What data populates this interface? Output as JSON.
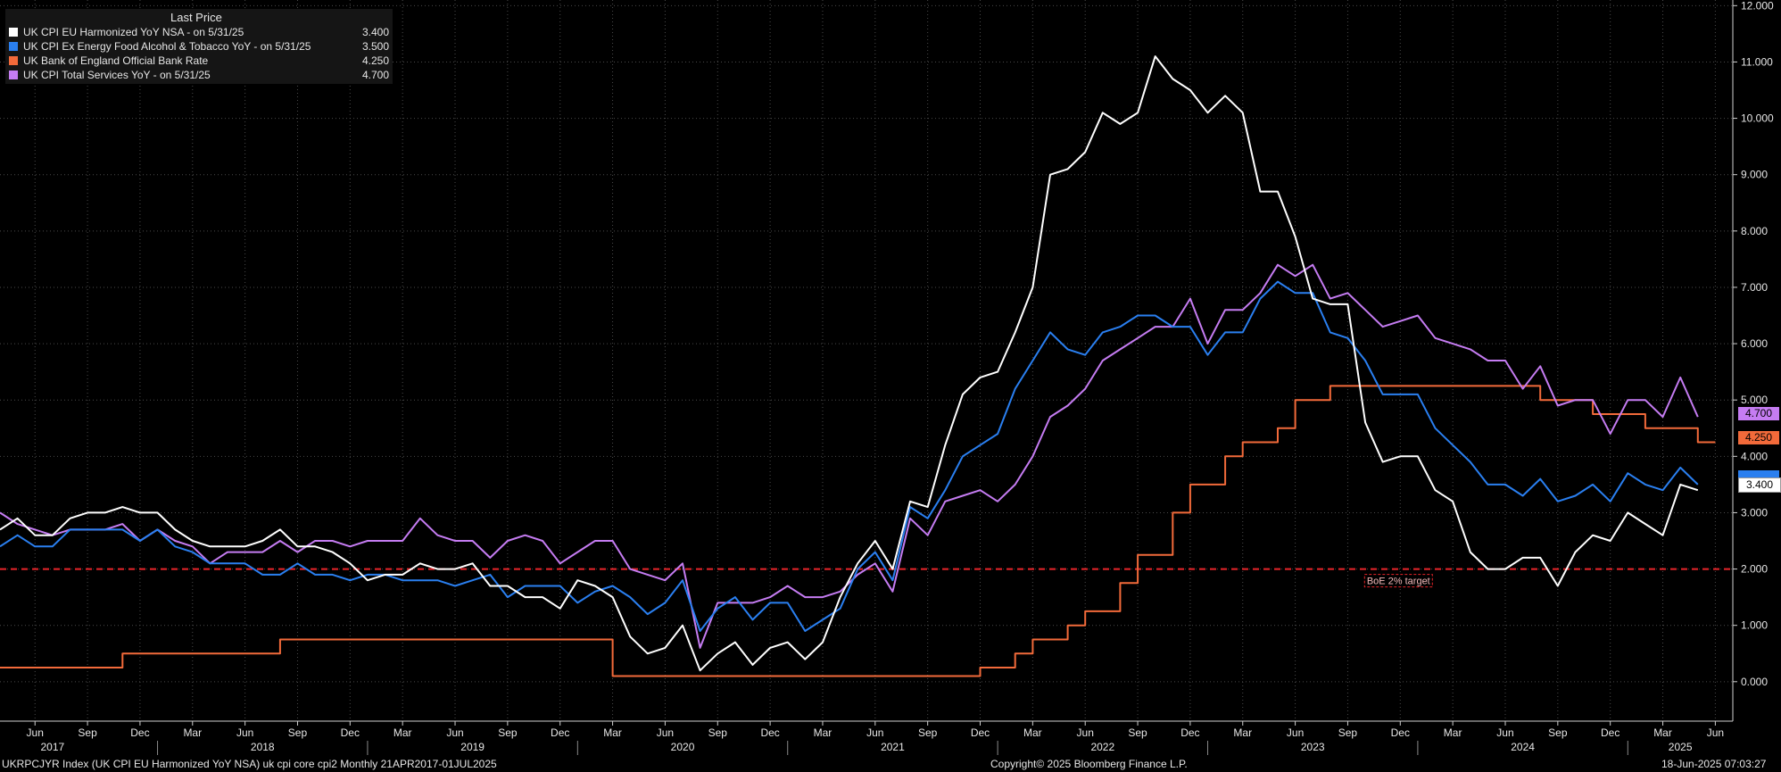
{
  "legend": {
    "header": "Last Price",
    "items": [
      {
        "label": "UK CPI EU Harmonized YoY NSA -  on 5/31/25",
        "value": "3.400",
        "color": "#ffffff"
      },
      {
        "label": "UK CPI Ex Energy Food Alcohol & Tobacco YoY -  on 5/31/25",
        "value": "3.500",
        "color": "#2a7ff0"
      },
      {
        "label": "UK Bank of England Official Bank Rate",
        "value": "4.250",
        "color": "#f26a3a"
      },
      {
        "label": "UK CPI Total Services YoY -  on 5/31/25",
        "value": "4.700",
        "color": "#c57cf2"
      }
    ]
  },
  "footer": {
    "left": "UKRPCJYR Index (UK CPI EU Harmonized YoY NSA) uk cpi core cpi2  Monthly 21APR2017-01JUL2025",
    "center": "Copyright© 2025 Bloomberg Finance L.P.",
    "right": "18-Jun-2025 07:03:27"
  },
  "annotation": "BoE 2% target",
  "chart_data": {
    "type": "line",
    "ylim": [
      -0.7,
      12.1
    ],
    "yticks": [
      "12.000",
      "11.000",
      "10.000",
      "9.000",
      "8.000",
      "7.000",
      "6.000",
      "5.000",
      "4.000",
      "3.000",
      "2.000",
      "1.000",
      "0.000"
    ],
    "ytick_values": [
      12,
      11,
      10,
      9,
      8,
      7,
      6,
      5,
      4,
      3,
      2,
      1,
      0
    ],
    "x_start": "2017-04",
    "x_end": "2025-07",
    "month_ticks": [
      {
        "label": "Jun",
        "date": "2017-06"
      },
      {
        "label": "Sep",
        "date": "2017-09"
      },
      {
        "label": "Dec",
        "date": "2017-12"
      },
      {
        "label": "Mar",
        "date": "2018-03"
      },
      {
        "label": "Jun",
        "date": "2018-06"
      },
      {
        "label": "Sep",
        "date": "2018-09"
      },
      {
        "label": "Dec",
        "date": "2018-12"
      },
      {
        "label": "Mar",
        "date": "2019-03"
      },
      {
        "label": "Jun",
        "date": "2019-06"
      },
      {
        "label": "Sep",
        "date": "2019-09"
      },
      {
        "label": "Dec",
        "date": "2019-12"
      },
      {
        "label": "Mar",
        "date": "2020-03"
      },
      {
        "label": "Jun",
        "date": "2020-06"
      },
      {
        "label": "Sep",
        "date": "2020-09"
      },
      {
        "label": "Dec",
        "date": "2020-12"
      },
      {
        "label": "Mar",
        "date": "2021-03"
      },
      {
        "label": "Jun",
        "date": "2021-06"
      },
      {
        "label": "Sep",
        "date": "2021-09"
      },
      {
        "label": "Dec",
        "date": "2021-12"
      },
      {
        "label": "Mar",
        "date": "2022-03"
      },
      {
        "label": "Jun",
        "date": "2022-06"
      },
      {
        "label": "Sep",
        "date": "2022-09"
      },
      {
        "label": "Dec",
        "date": "2022-12"
      },
      {
        "label": "Mar",
        "date": "2023-03"
      },
      {
        "label": "Jun",
        "date": "2023-06"
      },
      {
        "label": "Sep",
        "date": "2023-09"
      },
      {
        "label": "Dec",
        "date": "2023-12"
      },
      {
        "label": "Mar",
        "date": "2024-03"
      },
      {
        "label": "Jun",
        "date": "2024-06"
      },
      {
        "label": "Sep",
        "date": "2024-09"
      },
      {
        "label": "Dec",
        "date": "2024-12"
      },
      {
        "label": "Mar",
        "date": "2025-03"
      },
      {
        "label": "Jun",
        "date": "2025-06"
      }
    ],
    "year_ticks": [
      {
        "label": "2017",
        "date": "2017-07"
      },
      {
        "label": "2018",
        "date": "2018-07"
      },
      {
        "label": "2019",
        "date": "2019-07"
      },
      {
        "label": "2020",
        "date": "2020-07"
      },
      {
        "label": "2021",
        "date": "2021-07"
      },
      {
        "label": "2022",
        "date": "2022-07"
      },
      {
        "label": "2023",
        "date": "2023-07"
      },
      {
        "label": "2024",
        "date": "2024-07"
      },
      {
        "label": "2025",
        "date": "2025-04"
      }
    ],
    "reference_line": {
      "value": 2.0,
      "color": "#e8252a",
      "label": "BoE 2% target",
      "label_date": "2023-12"
    },
    "series_start": "2017-04",
    "series": [
      {
        "name": "UK CPI EU Harmonized YoY NSA",
        "color": "#ffffff",
        "last": "3.400",
        "values": [
          2.7,
          2.9,
          2.6,
          2.6,
          2.9,
          3.0,
          3.0,
          3.1,
          3.0,
          3.0,
          2.7,
          2.5,
          2.4,
          2.4,
          2.4,
          2.5,
          2.7,
          2.4,
          2.4,
          2.3,
          2.1,
          1.8,
          1.9,
          1.9,
          2.1,
          2.0,
          2.0,
          2.1,
          1.7,
          1.7,
          1.5,
          1.5,
          1.3,
          1.8,
          1.7,
          1.5,
          0.8,
          0.5,
          0.6,
          1.0,
          0.2,
          0.5,
          0.7,
          0.3,
          0.6,
          0.7,
          0.4,
          0.7,
          1.5,
          2.1,
          2.5,
          2.0,
          3.2,
          3.1,
          4.2,
          5.1,
          5.4,
          5.5,
          6.2,
          7.0,
          9.0,
          9.1,
          9.4,
          10.1,
          9.9,
          10.1,
          11.1,
          10.7,
          10.5,
          10.1,
          10.4,
          10.1,
          8.7,
          8.7,
          7.9,
          6.8,
          6.7,
          6.7,
          4.6,
          3.9,
          4.0,
          4.0,
          3.4,
          3.2,
          2.3,
          2.0,
          2.0,
          2.2,
          2.2,
          1.7,
          2.3,
          2.6,
          2.5,
          3.0,
          2.8,
          2.6,
          3.5,
          3.4
        ]
      },
      {
        "name": "UK CPI Ex Energy Food Alcohol & Tobacco YoY",
        "color": "#2a7ff0",
        "last": "3.500",
        "values": [
          2.4,
          2.6,
          2.4,
          2.4,
          2.7,
          2.7,
          2.7,
          2.7,
          2.5,
          2.7,
          2.4,
          2.3,
          2.1,
          2.1,
          2.1,
          1.9,
          1.9,
          2.1,
          1.9,
          1.9,
          1.8,
          1.9,
          1.9,
          1.8,
          1.8,
          1.8,
          1.7,
          1.8,
          1.9,
          1.5,
          1.7,
          1.7,
          1.7,
          1.4,
          1.6,
          1.7,
          1.5,
          1.2,
          1.4,
          1.8,
          0.9,
          1.3,
          1.5,
          1.1,
          1.4,
          1.4,
          0.9,
          1.1,
          1.3,
          2.0,
          2.3,
          1.8,
          3.1,
          2.9,
          3.4,
          4.0,
          4.2,
          4.4,
          5.2,
          5.7,
          6.2,
          5.9,
          5.8,
          6.2,
          6.3,
          6.5,
          6.5,
          6.3,
          6.3,
          5.8,
          6.2,
          6.2,
          6.8,
          7.1,
          6.9,
          6.9,
          6.2,
          6.1,
          5.7,
          5.1,
          5.1,
          5.1,
          4.5,
          4.2,
          3.9,
          3.5,
          3.5,
          3.3,
          3.6,
          3.2,
          3.3,
          3.5,
          3.2,
          3.7,
          3.5,
          3.4,
          3.8,
          3.5
        ]
      },
      {
        "name": "UK Bank of England Official Bank Rate",
        "color": "#f26a3a",
        "last": "4.250",
        "values": [
          0.25,
          0.25,
          0.25,
          0.25,
          0.25,
          0.25,
          0.25,
          0.5,
          0.5,
          0.5,
          0.5,
          0.5,
          0.5,
          0.5,
          0.5,
          0.5,
          0.75,
          0.75,
          0.75,
          0.75,
          0.75,
          0.75,
          0.75,
          0.75,
          0.75,
          0.75,
          0.75,
          0.75,
          0.75,
          0.75,
          0.75,
          0.75,
          0.75,
          0.75,
          0.75,
          0.1,
          0.1,
          0.1,
          0.1,
          0.1,
          0.1,
          0.1,
          0.1,
          0.1,
          0.1,
          0.1,
          0.1,
          0.1,
          0.1,
          0.1,
          0.1,
          0.1,
          0.1,
          0.1,
          0.1,
          0.1,
          0.25,
          0.25,
          0.5,
          0.75,
          0.75,
          1.0,
          1.25,
          1.25,
          1.75,
          2.25,
          2.25,
          3.0,
          3.5,
          3.5,
          4.0,
          4.25,
          4.25,
          4.5,
          5.0,
          5.0,
          5.25,
          5.25,
          5.25,
          5.25,
          5.25,
          5.25,
          5.25,
          5.25,
          5.25,
          5.25,
          5.25,
          5.25,
          5.0,
          5.0,
          5.0,
          4.75,
          4.75,
          4.75,
          4.5,
          4.5,
          4.5,
          4.25,
          4.25
        ]
      },
      {
        "name": "UK CPI Total Services YoY",
        "color": "#c57cf2",
        "last": "4.700",
        "values": [
          3.0,
          2.8,
          2.7,
          2.6,
          2.7,
          2.7,
          2.7,
          2.8,
          2.5,
          2.7,
          2.5,
          2.4,
          2.1,
          2.3,
          2.3,
          2.3,
          2.5,
          2.3,
          2.5,
          2.5,
          2.4,
          2.5,
          2.5,
          2.5,
          2.9,
          2.6,
          2.5,
          2.5,
          2.2,
          2.5,
          2.6,
          2.5,
          2.1,
          2.3,
          2.5,
          2.5,
          2.0,
          1.9,
          1.8,
          2.1,
          0.6,
          1.4,
          1.4,
          1.4,
          1.5,
          1.7,
          1.5,
          1.5,
          1.6,
          1.9,
          2.1,
          1.6,
          2.9,
          2.6,
          3.2,
          3.3,
          3.4,
          3.2,
          3.5,
          4.0,
          4.7,
          4.9,
          5.2,
          5.7,
          5.9,
          6.1,
          6.3,
          6.3,
          6.8,
          6.0,
          6.6,
          6.6,
          6.9,
          7.4,
          7.2,
          7.4,
          6.8,
          6.9,
          6.6,
          6.3,
          6.4,
          6.5,
          6.1,
          6.0,
          5.9,
          5.7,
          5.7,
          5.2,
          5.6,
          4.9,
          5.0,
          5.0,
          4.4,
          5.0,
          5.0,
          4.7,
          5.4,
          4.7
        ]
      }
    ]
  }
}
